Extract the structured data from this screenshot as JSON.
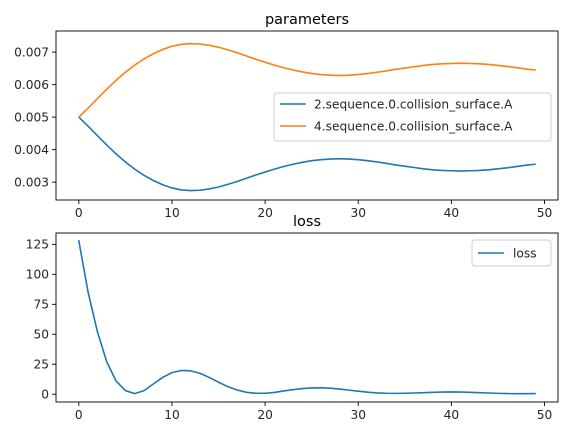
{
  "chart_data": [
    {
      "type": "line",
      "title": "parameters",
      "xlabel": "",
      "ylabel": "",
      "xlim": [
        -2.45,
        51.45
      ],
      "ylim": [
        0.00245,
        0.00765
      ],
      "xticks": [
        0,
        10,
        20,
        30,
        40,
        50
      ],
      "xtick_labels": [
        "0",
        "10",
        "20",
        "30",
        "40",
        "50"
      ],
      "yticks": [
        0.003,
        0.004,
        0.005,
        0.006,
        0.007
      ],
      "ytick_labels": [
        "0.003",
        "0.004",
        "0.005",
        "0.006",
        "0.007"
      ],
      "grid": false,
      "legend": "center-right",
      "series": [
        {
          "name": "2.sequence.0.collision_surface.A",
          "color": "#1f77b4",
          "x": [
            0,
            1,
            2,
            3,
            4,
            5,
            6,
            7,
            8,
            9,
            10,
            11,
            12,
            13,
            14,
            15,
            16,
            17,
            18,
            19,
            20,
            21,
            22,
            23,
            24,
            25,
            26,
            27,
            28,
            29,
            30,
            31,
            32,
            33,
            34,
            35,
            36,
            37,
            38,
            39,
            40,
            41,
            42,
            43,
            44,
            45,
            46,
            47,
            48,
            49
          ],
          "values": [
            0.005,
            0.00472,
            0.00443,
            0.00414,
            0.00387,
            0.00362,
            0.0034,
            0.00321,
            0.00305,
            0.00292,
            0.00282,
            0.00276,
            0.00274,
            0.00275,
            0.00279,
            0.00285,
            0.00293,
            0.00302,
            0.00312,
            0.00322,
            0.00331,
            0.0034,
            0.00348,
            0.00355,
            0.00361,
            0.00366,
            0.00369,
            0.00371,
            0.00372,
            0.00371,
            0.00369,
            0.00366,
            0.00362,
            0.00358,
            0.00353,
            0.00349,
            0.00345,
            0.00341,
            0.00338,
            0.00336,
            0.00335,
            0.00334,
            0.00335,
            0.00336,
            0.00338,
            0.00341,
            0.00344,
            0.00348,
            0.00352,
            0.00355
          ]
        },
        {
          "name": "4.sequence.0.collision_surface.A",
          "color": "#ff7f0e",
          "x": [
            0,
            1,
            2,
            3,
            4,
            5,
            6,
            7,
            8,
            9,
            10,
            11,
            12,
            13,
            14,
            15,
            16,
            17,
            18,
            19,
            20,
            21,
            22,
            23,
            24,
            25,
            26,
            27,
            28,
            29,
            30,
            31,
            32,
            33,
            34,
            35,
            36,
            37,
            38,
            39,
            40,
            41,
            42,
            43,
            44,
            45,
            46,
            47,
            48,
            49
          ],
          "values": [
            0.005,
            0.00528,
            0.00557,
            0.00586,
            0.00613,
            0.00638,
            0.0066,
            0.00679,
            0.00695,
            0.00708,
            0.00718,
            0.00724,
            0.00726,
            0.00725,
            0.00721,
            0.00715,
            0.00707,
            0.00698,
            0.00688,
            0.00678,
            0.00669,
            0.0066,
            0.00652,
            0.00645,
            0.00639,
            0.00634,
            0.00631,
            0.00629,
            0.00628,
            0.00629,
            0.00631,
            0.00634,
            0.00638,
            0.00642,
            0.00647,
            0.00651,
            0.00655,
            0.00659,
            0.00662,
            0.00664,
            0.00665,
            0.00666,
            0.00665,
            0.00664,
            0.00662,
            0.00659,
            0.00656,
            0.00652,
            0.00648,
            0.00645
          ]
        }
      ]
    },
    {
      "type": "line",
      "title": "loss",
      "xlabel": "",
      "ylabel": "",
      "xlim": [
        -2.45,
        51.45
      ],
      "ylim": [
        -6.5,
        134.5
      ],
      "xticks": [
        0,
        10,
        20,
        30,
        40,
        50
      ],
      "xtick_labels": [
        "0",
        "10",
        "20",
        "30",
        "40",
        "50"
      ],
      "yticks": [
        0,
        25,
        50,
        75,
        100,
        125
      ],
      "ytick_labels": [
        "0",
        "25",
        "50",
        "75",
        "100",
        "125"
      ],
      "grid": false,
      "legend": "top-right",
      "series": [
        {
          "name": "loss",
          "color": "#1f77b4",
          "x": [
            0,
            1,
            2,
            3,
            4,
            5,
            6,
            7,
            8,
            9,
            10,
            11,
            12,
            13,
            14,
            15,
            16,
            17,
            18,
            19,
            20,
            21,
            22,
            23,
            24,
            25,
            26,
            27,
            28,
            29,
            30,
            31,
            32,
            33,
            34,
            35,
            36,
            37,
            38,
            39,
            40,
            41,
            42,
            43,
            44,
            45,
            46,
            47,
            48,
            49
          ],
          "values": [
            128,
            85,
            52,
            27,
            11,
            3,
            0.5,
            3,
            8.5,
            14,
            18,
            19.8,
            19.5,
            17.5,
            14,
            10,
            6.3,
            3.5,
            1.6,
            0.8,
            0.8,
            1.5,
            2.7,
            3.8,
            4.7,
            5.2,
            5.3,
            5.0,
            4.3,
            3.4,
            2.5,
            1.7,
            1.1,
            0.8,
            0.7,
            0.8,
            1.0,
            1.3,
            1.6,
            1.8,
            1.9,
            1.8,
            1.6,
            1.3,
            1.0,
            0.7,
            0.5,
            0.4,
            0.4,
            0.5
          ]
        }
      ]
    }
  ]
}
